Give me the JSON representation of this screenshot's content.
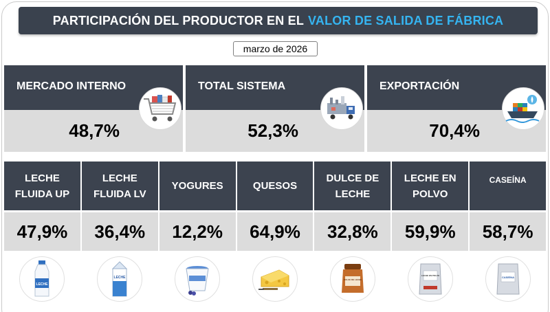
{
  "title": {
    "part1": "PARTICIPACIÓN DEL PRODUCTOR EN EL",
    "part2": "VALOR DE SALIDA DE FÁBRICA",
    "accent_color": "#35b4f0",
    "bar_color": "#3a424e"
  },
  "date": "marzo de 2026",
  "summary": [
    {
      "label": "MERCADO INTERNO",
      "value": "48,7%",
      "icon": "shopping-cart-icon"
    },
    {
      "label": "TOTAL SISTEMA",
      "value": "52,3%",
      "icon": "factory-truck-icon"
    },
    {
      "label": "EXPORTACIÓN",
      "value": "70,4%",
      "icon": "cargo-ship-icon"
    }
  ],
  "products": [
    {
      "line1": "LECHE",
      "line2": "FLUIDA UP",
      "value": "47,9%",
      "icon": "milk-bottle-icon",
      "pkg_text": "LECHE"
    },
    {
      "line1": "LECHE",
      "line2": "FLUIDA LV",
      "value": "36,4%",
      "icon": "milk-carton-icon",
      "pkg_text": "LECHE"
    },
    {
      "line1": "YOGURES",
      "line2": "",
      "value": "12,2%",
      "icon": "yogurt-cup-icon"
    },
    {
      "line1": "QUESOS",
      "line2": "",
      "value": "64,9%",
      "icon": "cheese-icon"
    },
    {
      "line1": "DULCE DE",
      "line2": "LECHE",
      "value": "32,8%",
      "icon": "dulce-de-leche-jar-icon",
      "pkg_text": "DULCE DE LECHE"
    },
    {
      "line1": "LECHE EN",
      "line2": "POLVO",
      "value": "59,9%",
      "icon": "milk-powder-bag-icon",
      "pkg_text": "LECHE EN POLVO"
    },
    {
      "line1": "CASEÍNA",
      "line2": "",
      "value": "58,7%",
      "icon": "casein-bag-icon",
      "pkg_text": "CASEÍNA"
    }
  ]
}
